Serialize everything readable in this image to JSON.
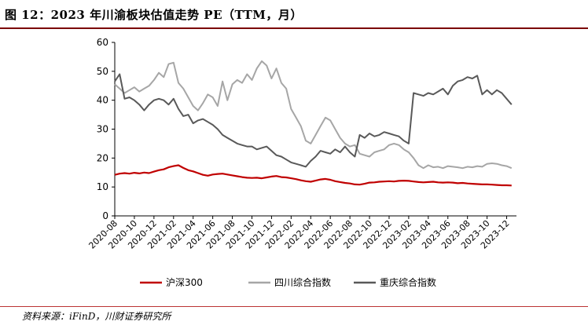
{
  "header": {
    "title": "图 12：2023 年川渝板块估值走势 PE（TTM，月）"
  },
  "footer": {
    "source": "资料来源：iFinD，川财证券研究所"
  },
  "chart_data": {
    "type": "line",
    "title": "",
    "xlabel": "",
    "ylabel": "",
    "ylim": [
      0,
      60
    ],
    "yticks": [
      0,
      10,
      20,
      30,
      40,
      50,
      60
    ],
    "x_tick_labels": [
      "2020-08",
      "2020-10",
      "2020-12",
      "2021-02",
      "2021-04",
      "2021-06",
      "2021-08",
      "2021-10",
      "2021-12",
      "2022-02",
      "2022-04",
      "2022-06",
      "2022-08",
      "2022-10",
      "2022-12",
      "2023-02",
      "2023-04",
      "2023-06",
      "2023-08",
      "2023-10",
      "2023-12"
    ],
    "x_range": [
      0,
      41
    ],
    "grid": false,
    "legend_position": "bottom",
    "colors": {
      "hushen300": "#c00000",
      "sichuan": "#a6a6a6",
      "chongqing": "#595959"
    },
    "series": [
      {
        "key": "hushen300",
        "name": "沪深300",
        "x": [
          0,
          0.5,
          1,
          1.5,
          2,
          2.5,
          3,
          3.5,
          4,
          4.5,
          5,
          5.5,
          6,
          6.5,
          7,
          7.5,
          8,
          8.5,
          9,
          9.5,
          10,
          10.5,
          11,
          11.5,
          12,
          12.5,
          13,
          13.5,
          14,
          14.5,
          15,
          15.5,
          16,
          16.5,
          17,
          17.5,
          18,
          18.5,
          19,
          19.5,
          20,
          20.5,
          21,
          21.5,
          22,
          22.5,
          23,
          23.5,
          24,
          24.5,
          25,
          25.5,
          26,
          26.5,
          27,
          27.5,
          28,
          28.5,
          29,
          29.5,
          30,
          30.5,
          31,
          31.5,
          32,
          32.5,
          33,
          33.5,
          34,
          34.5,
          35,
          35.5,
          36,
          36.5,
          37,
          37.5,
          38,
          38.5,
          39,
          39.5,
          40,
          40.5
        ],
        "values": [
          14.2,
          14.6,
          14.8,
          14.6,
          14.9,
          14.7,
          15.0,
          14.8,
          15.3,
          15.8,
          16.1,
          16.8,
          17.2,
          17.5,
          16.6,
          15.8,
          15.4,
          14.8,
          14.2,
          13.9,
          14.3,
          14.5,
          14.6,
          14.3,
          14.0,
          13.7,
          13.4,
          13.2,
          13.1,
          13.2,
          13.0,
          13.3,
          13.6,
          13.8,
          13.4,
          13.3,
          13.0,
          12.7,
          12.3,
          12.0,
          11.8,
          12.2,
          12.6,
          12.8,
          12.5,
          12.0,
          11.7,
          11.4,
          11.2,
          10.9,
          10.8,
          11.1,
          11.5,
          11.6,
          11.8,
          11.9,
          12.0,
          11.9,
          12.1,
          12.2,
          12.1,
          11.9,
          11.7,
          11.6,
          11.7,
          11.8,
          11.6,
          11.5,
          11.6,
          11.5,
          11.3,
          11.4,
          11.2,
          11.1,
          11.0,
          10.9,
          10.9,
          10.8,
          10.7,
          10.6,
          10.6,
          10.5
        ]
      },
      {
        "key": "sichuan",
        "name": "四川综合指数",
        "x": [
          0,
          0.5,
          1,
          1.5,
          2,
          2.5,
          3,
          3.5,
          4,
          4.5,
          5,
          5.5,
          6,
          6.5,
          7,
          7.5,
          8,
          8.5,
          9,
          9.5,
          10,
          10.5,
          11,
          11.5,
          12,
          12.5,
          13,
          13.5,
          14,
          14.5,
          15,
          15.5,
          16,
          16.5,
          17,
          17.5,
          18,
          18.5,
          19,
          19.5,
          20,
          20.5,
          21,
          21.5,
          22,
          22.5,
          23,
          23.5,
          24,
          24.5,
          25,
          25.5,
          26,
          26.5,
          27,
          27.5,
          28,
          28.5,
          29,
          29.5,
          30,
          30.5,
          31,
          31.5,
          32,
          32.5,
          33,
          33.5,
          34,
          34.5,
          35,
          35.5,
          36,
          36.5,
          37,
          37.5,
          38,
          38.5,
          39,
          39.5,
          40,
          40.5
        ],
        "values": [
          45.5,
          44.0,
          42.5,
          43.5,
          44.5,
          43.0,
          44.0,
          45.0,
          47.0,
          49.5,
          48.0,
          52.5,
          53.0,
          46.0,
          44.0,
          41.0,
          38.0,
          36.5,
          39.0,
          42.0,
          41.0,
          38.0,
          46.5,
          40.0,
          45.5,
          47.0,
          46.0,
          49.0,
          47.0,
          51.0,
          53.5,
          52.0,
          47.5,
          51.0,
          46.0,
          44.0,
          37.0,
          34.0,
          31.0,
          26.0,
          25.0,
          28.0,
          31.0,
          34.0,
          33.0,
          30.0,
          27.0,
          25.0,
          24.0,
          24.5,
          21.5,
          21.0,
          20.5,
          22.0,
          22.5,
          23.0,
          24.5,
          25.0,
          24.5,
          23.0,
          22.0,
          20.0,
          17.5,
          16.5,
          17.5,
          16.8,
          17.0,
          16.5,
          17.2,
          17.0,
          16.8,
          16.5,
          17.0,
          16.8,
          17.2,
          17.0,
          18.0,
          18.2,
          18.0,
          17.5,
          17.2,
          16.5
        ]
      },
      {
        "key": "chongqing",
        "name": "重庆综合指数",
        "x": [
          0,
          0.5,
          1,
          1.5,
          2,
          2.5,
          3,
          3.5,
          4,
          4.5,
          5,
          5.5,
          6,
          6.5,
          7,
          7.5,
          8,
          8.5,
          9,
          9.5,
          10,
          10.5,
          11,
          11.5,
          12,
          12.5,
          13,
          13.5,
          14,
          14.5,
          15,
          15.5,
          16,
          16.5,
          17,
          17.5,
          18,
          18.5,
          19,
          19.5,
          20,
          20.5,
          21,
          21.5,
          22,
          22.5,
          23,
          23.5,
          24,
          24.5,
          25,
          25.5,
          26,
          26.5,
          27,
          27.5,
          28,
          28.5,
          29,
          29.5,
          30,
          30.5,
          31,
          31.5,
          32,
          32.5,
          33,
          33.5,
          34,
          34.5,
          35,
          35.5,
          36,
          36.5,
          37,
          37.5,
          38,
          38.5,
          39,
          39.5,
          40,
          40.5
        ],
        "values": [
          46.5,
          49.0,
          40.5,
          41.0,
          40.0,
          38.5,
          36.5,
          38.5,
          40.0,
          40.5,
          40.0,
          38.5,
          40.5,
          37.0,
          34.5,
          35.0,
          32.0,
          33.0,
          33.5,
          32.5,
          31.5,
          30.0,
          28.0,
          27.0,
          26.0,
          25.0,
          24.5,
          24.0,
          24.0,
          23.0,
          23.5,
          24.0,
          22.5,
          21.0,
          20.5,
          19.5,
          18.5,
          18.0,
          17.5,
          17.0,
          19.0,
          20.5,
          22.5,
          22.0,
          21.5,
          23.0,
          22.0,
          24.0,
          22.0,
          20.5,
          28.0,
          27.0,
          28.5,
          27.5,
          28.0,
          29.0,
          28.5,
          28.0,
          27.5,
          26.0,
          25.0,
          42.5,
          42.0,
          41.5,
          42.5,
          42.0,
          43.0,
          44.0,
          42.0,
          45.0,
          46.5,
          47.0,
          48.0,
          47.5,
          48.5,
          42.0,
          43.5,
          42.0,
          43.5,
          42.5,
          40.5,
          38.5
        ]
      }
    ]
  }
}
